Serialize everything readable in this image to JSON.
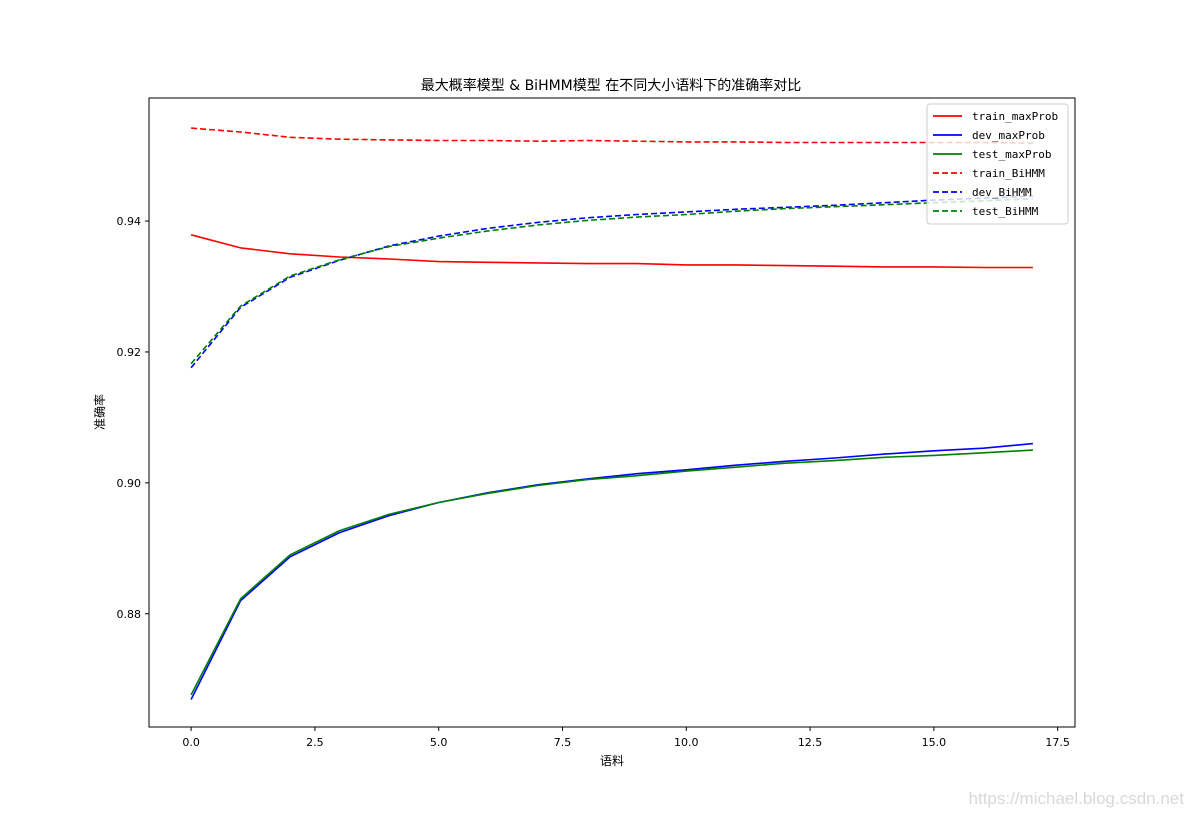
{
  "chart_data": {
    "type": "line",
    "title": "最大概率模型 & BiHMM模型 在不同大小语料下的准确率对比",
    "xlabel": "语料",
    "ylabel": "准确率",
    "x": [
      0,
      1,
      2,
      3,
      4,
      5,
      6,
      7,
      8,
      9,
      10,
      11,
      12,
      13,
      14,
      15,
      16,
      17
    ],
    "xlim": [
      -0.85,
      17.85
    ],
    "ylim": [
      0.8627,
      0.9588
    ],
    "xticks": [
      0.0,
      2.5,
      5.0,
      7.5,
      10.0,
      12.5,
      15.0,
      17.5
    ],
    "xtick_labels": [
      "0.0",
      "2.5",
      "5.0",
      "7.5",
      "10.0",
      "12.5",
      "15.0",
      "17.5"
    ],
    "yticks": [
      0.88,
      0.9,
      0.92,
      0.94
    ],
    "ytick_labels": [
      "0.88",
      "0.90",
      "0.92",
      "0.94"
    ],
    "grid": false,
    "legend_position": "upper right",
    "series": [
      {
        "name": "train_maxProb",
        "color": "#ff0000",
        "style": "solid",
        "values": [
          0.9379,
          0.9359,
          0.935,
          0.9345,
          0.9342,
          0.9338,
          0.9337,
          0.9336,
          0.9335,
          0.9335,
          0.9333,
          0.9333,
          0.9332,
          0.9331,
          0.933,
          0.933,
          0.9329,
          0.9329
        ]
      },
      {
        "name": "dev_maxProb",
        "color": "#0000ff",
        "style": "solid",
        "values": [
          0.8669,
          0.882,
          0.8887,
          0.8924,
          0.895,
          0.897,
          0.8985,
          0.8997,
          0.9006,
          0.9014,
          0.902,
          0.9027,
          0.9033,
          0.9038,
          0.9044,
          0.9049,
          0.9053,
          0.906
        ]
      },
      {
        "name": "test_maxProb",
        "color": "#008000",
        "style": "solid",
        "values": [
          0.8676,
          0.8823,
          0.889,
          0.8927,
          0.8952,
          0.897,
          0.8984,
          0.8996,
          0.9005,
          0.9011,
          0.9018,
          0.9024,
          0.903,
          0.9034,
          0.9039,
          0.9042,
          0.9046,
          0.905
        ]
      },
      {
        "name": "train_BiHMM",
        "color": "#ff0000",
        "style": "dashed",
        "values": [
          0.9542,
          0.9536,
          0.9528,
          0.9525,
          0.9524,
          0.9523,
          0.9523,
          0.9522,
          0.9523,
          0.9522,
          0.9521,
          0.9521,
          0.952,
          0.952,
          0.952,
          0.952,
          0.952,
          0.9519
        ]
      },
      {
        "name": "dev_BiHMM",
        "color": "#0000ff",
        "style": "dashed",
        "values": [
          0.9176,
          0.9268,
          0.9314,
          0.934,
          0.9362,
          0.9377,
          0.9389,
          0.9398,
          0.9405,
          0.941,
          0.9414,
          0.9418,
          0.9421,
          0.9424,
          0.9428,
          0.9432,
          0.9435,
          0.9438
        ]
      },
      {
        "name": "test_BiHMM",
        "color": "#008000",
        "style": "dashed",
        "values": [
          0.9182,
          0.927,
          0.9316,
          0.9341,
          0.9361,
          0.9374,
          0.9385,
          0.9394,
          0.9401,
          0.9406,
          0.941,
          0.9415,
          0.9419,
          0.9422,
          0.9425,
          0.9428,
          0.9431,
          0.9434
        ]
      }
    ]
  },
  "watermark": "https://michael.blog.csdn.net"
}
